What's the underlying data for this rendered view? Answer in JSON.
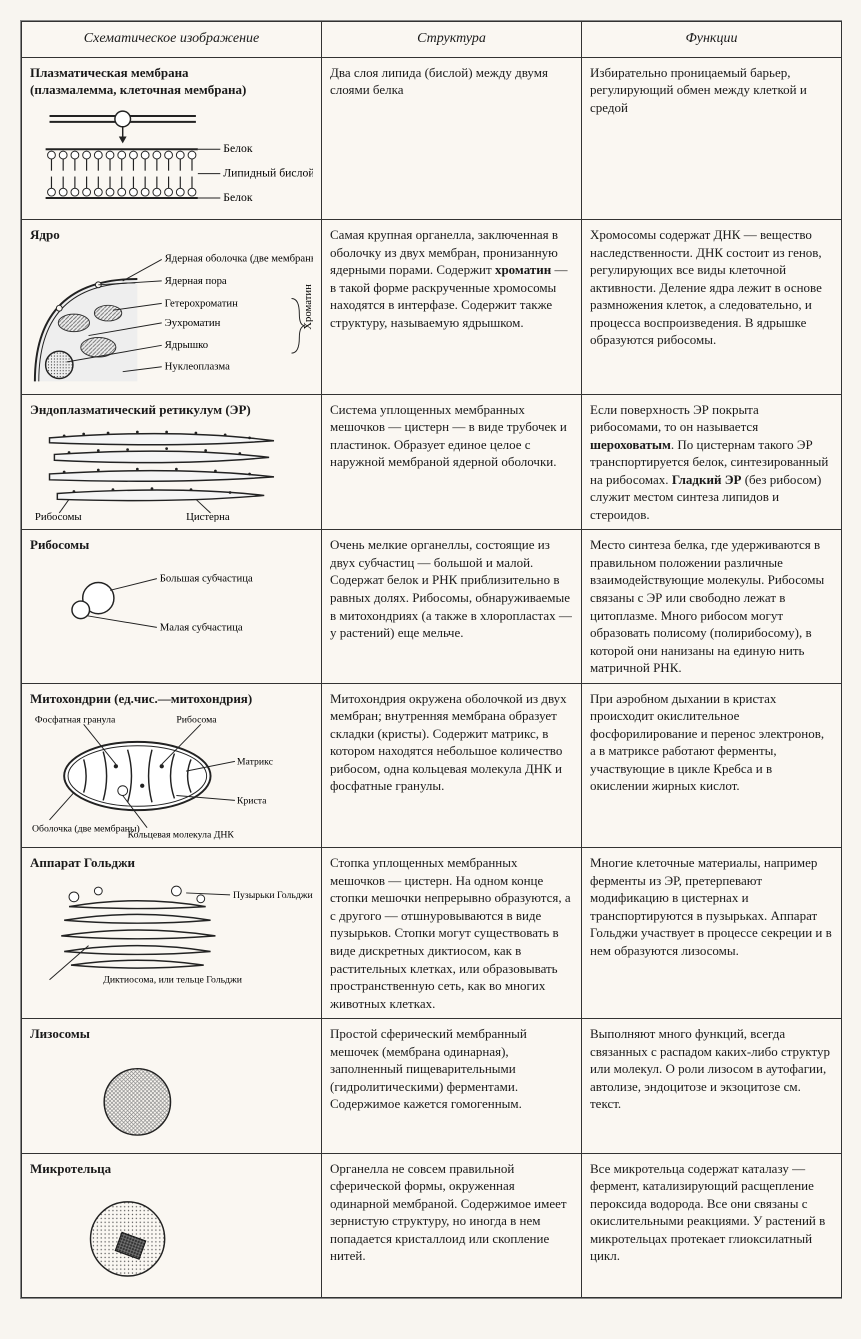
{
  "headers": {
    "c1": "Схематическое изображение",
    "c2": "Структура",
    "c3": "Функции"
  },
  "rows": [
    {
      "title": "Плазматическая мембрана\n(плазмалемма, клеточная мембрана)",
      "labels": {
        "protein_top": "Белок",
        "lipid": "Липидный бислой",
        "protein_bot": "Белок"
      },
      "structure": "Два слоя липида (бислой) между двумя слоями белка",
      "function": "Избирательно проницаемый барьер, регулирующий обмен между клеткой и средой"
    },
    {
      "title": "Ядро",
      "labels": {
        "env": "Ядерная оболочка (две мембраны)",
        "pore": "Ядерная пора",
        "hetero": "Гетерохроматин",
        "euchr": "Эухроматин",
        "nucleolus": "Ядрышко",
        "nucplasm": "Нуклеоплазма",
        "chromatin": "Хроматин"
      },
      "structure_b": "хроматин",
      "structure_pre": "Самая крупная органелла, заключенная в оболочку из двух мембран, пронизанную ядерными порами. Содержит ",
      "structure_post": " — в такой форме раскрученные хромосомы находятся в интерфазе. Содержит также структуру, называемую ядрышком.",
      "function": "Хромосомы содержат ДНК — вещество наследственности. ДНК состоит из генов, регулирующих все виды клеточной активности. Деление ядра лежит в основе размножения клеток, а следовательно, и процесса воспроизведения. В ядрышке образуются рибосомы."
    },
    {
      "title": "Эндоплазматический ретикулум (ЭР)",
      "labels": {
        "ribo": "Рибосомы",
        "cist": "Цистерна"
      },
      "structure": "Система уплощенных мембранных мешочков — цистерн — в виде трубочек и пластинок. Образует единое целое с наружной мембраной ядерной оболочки.",
      "function_pre": "Если поверхность ЭР покрыта рибосомами, то он называется ",
      "function_b1": "шероховатым",
      "function_mid": ". По цистернам такого ЭР транспортируется белок, синтезированный на рибосомах. ",
      "function_b2": "Гладкий ЭР",
      "function_post": " (без рибосом) служит местом синтеза липидов и стероидов."
    },
    {
      "title": "Рибосомы",
      "labels": {
        "big": "Большая субчастица",
        "small": "Малая субчастица"
      },
      "structure": "Очень мелкие органеллы, состоящие из двух субчастиц — большой и малой. Содержат белок и РНК приблизительно в равных долях. Рибосомы, обнаруживаемые в митохондриях (а также в хлоропластах — у растений) еще мельче.",
      "function": "Место синтеза белка, где удерживаются в правильном положении различные взаимодействующие молекулы. Рибосомы связаны с ЭР или свободно лежат в цитоплазме. Много рибосом могут образовать полисому (полирибосому), в которой они нанизаны на единую нить матричной РНК."
    },
    {
      "title": "Митохондрии (ед.чис.—митохондрия)",
      "labels": {
        "phos": "Фосфатная гранула",
        "ribo": "Рибосома",
        "matrix": "Матрикс",
        "crista": "Криста",
        "env": "Оболочка (две мембраны)",
        "dna": "Кольцевая молекула ДНК"
      },
      "structure": "Митохондрия окружена оболочкой из двух мембран; внутренняя мембрана образует складки (кристы). Содержит матрикс, в котором находятся небольшое количество рибосом, одна кольцевая молекула ДНК и фосфатные гранулы.",
      "function": "При аэробном дыхании в кристах происходит окислительное фосфорилирование и перенос электронов, а в матриксе работают ферменты, участвующие в цикле Кребса и в окислении жирных кислот."
    },
    {
      "title": "Аппарат Гольджи",
      "labels": {
        "ves": "Пузырьки Гольджи",
        "dict": "Диктиосома, или тельце Гольджи"
      },
      "structure": "Стопка уплощенных мембранных мешочков — цистерн. На одном конце стопки мешочки непрерывно образуются, а с другого — отшнуровываются в виде пузырьков. Стопки могут существовать в виде дискретных диктиосом, как в растительных клетках, или образовывать пространственную сеть, как во многих животных клетках.",
      "function": "Многие клеточные материалы, например ферменты из ЭР, претерпевают модификацию в цистернах и транспортируются в пузырьках. Аппарат Гольджи участвует в процессе секреции и в нем образуются лизосомы."
    },
    {
      "title": "Лизосомы",
      "labels": {},
      "structure": "Простой сферический мембранный мешочек (мембрана одинарная), заполненный пищеварительными (гидролитическими) ферментами. Содержимое кажется гомогенным.",
      "function": "Выполняют много функций, всегда связанных с распадом каких-либо структур или молекул. О роли лизосом в аутофагии, автолизе, эндоцитозе и экзоцитозе см. текст."
    },
    {
      "title": "Микротельца",
      "labels": {},
      "structure": "Органелла не совсем правильной сферической формы, окруженная одинарной мембраной. Содержимое имеет зернистую структуру, но иногда в нем попадается кристаллоид или скопление нитей.",
      "function": "Все микротельца содержат каталазу — фермент, катализирующий расщепление пероксида водорода. Все они связаны с окислительными реакциями. У растений в микротельцах протекает глиоксилатный цикл."
    }
  ]
}
